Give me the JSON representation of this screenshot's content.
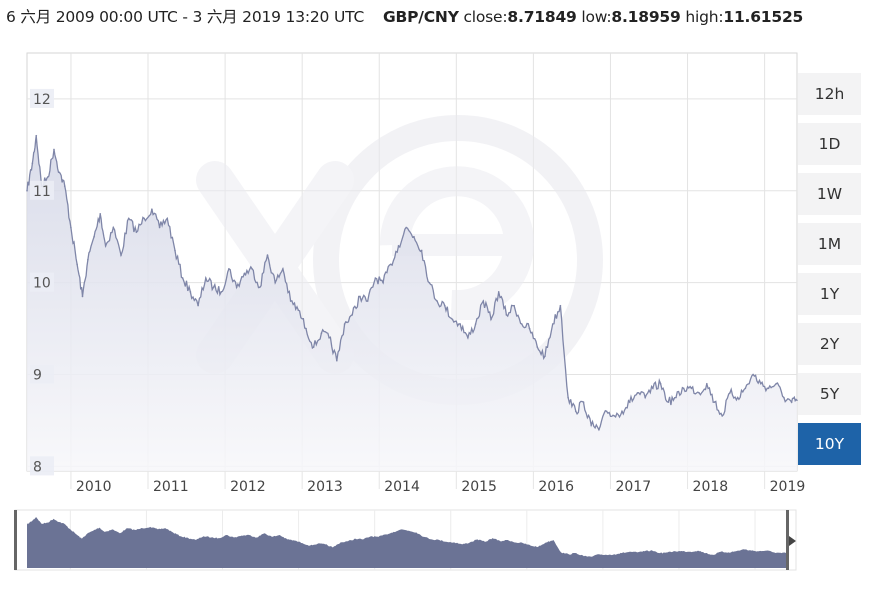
{
  "header": {
    "range": "6 六月 2009 00:00 UTC - 3 六月 2019 13:20 UTC",
    "pair": "GBP/CNY",
    "close_label": "close:",
    "close_value": "8.71849",
    "low_label": "low:",
    "low_value": "8.18959",
    "high_label": "high:",
    "high_value": "11.61525"
  },
  "timeframes": [
    {
      "label": "12h",
      "active": false
    },
    {
      "label": "1D",
      "active": false
    },
    {
      "label": "1W",
      "active": false
    },
    {
      "label": "1M",
      "active": false
    },
    {
      "label": "1Y",
      "active": false
    },
    {
      "label": "2Y",
      "active": false
    },
    {
      "label": "5Y",
      "active": false
    },
    {
      "label": "10Y",
      "active": true
    }
  ],
  "colors": {
    "line": "#7f86a8",
    "area_top": "#d9dbe8",
    "navigator_fill": "#6b7395",
    "active_button": "#1e63a8",
    "grid": "#e3e3e3"
  },
  "chart_data": {
    "type": "area",
    "title": "GBP/CNY",
    "xlabel": "",
    "ylabel": "",
    "xlim": [
      2009.43,
      2019.42
    ],
    "ylim": [
      7.95,
      12.5
    ],
    "yticks": [
      12,
      11,
      10,
      9,
      8
    ],
    "xticks": [
      2010,
      2011,
      2012,
      2013,
      2014,
      2015,
      2016,
      2017,
      2018,
      2019
    ],
    "grid": true,
    "navigator": true,
    "series": [
      {
        "name": "GBP/CNY",
        "x": [
          2009.43,
          2009.5,
          2009.55,
          2009.62,
          2009.7,
          2009.78,
          2009.85,
          2009.92,
          2010.0,
          2010.08,
          2010.15,
          2010.22,
          2010.3,
          2010.38,
          2010.45,
          2010.55,
          2010.65,
          2010.75,
          2010.85,
          2010.95,
          2011.05,
          2011.15,
          2011.25,
          2011.35,
          2011.45,
          2011.55,
          2011.65,
          2011.75,
          2011.85,
          2011.95,
          2012.05,
          2012.15,
          2012.25,
          2012.35,
          2012.45,
          2012.55,
          2012.65,
          2012.75,
          2012.85,
          2012.95,
          2013.05,
          2013.15,
          2013.25,
          2013.35,
          2013.45,
          2013.55,
          2013.65,
          2013.75,
          2013.85,
          2013.95,
          2014.05,
          2014.15,
          2014.25,
          2014.35,
          2014.45,
          2014.55,
          2014.65,
          2014.75,
          2014.85,
          2014.95,
          2015.05,
          2015.15,
          2015.25,
          2015.35,
          2015.45,
          2015.55,
          2015.65,
          2015.75,
          2015.85,
          2015.95,
          2016.05,
          2016.15,
          2016.25,
          2016.35,
          2016.45,
          2016.55,
          2016.65,
          2016.75,
          2016.85,
          2016.95,
          2017.05,
          2017.15,
          2017.25,
          2017.35,
          2017.45,
          2017.55,
          2017.65,
          2017.75,
          2017.85,
          2017.95,
          2018.05,
          2018.15,
          2018.25,
          2018.35,
          2018.45,
          2018.55,
          2018.65,
          2018.75,
          2018.85,
          2018.95,
          2019.05,
          2019.15,
          2019.25,
          2019.35,
          2019.42
        ],
        "y": [
          11.0,
          11.3,
          11.6,
          11.05,
          11.15,
          11.45,
          11.2,
          11.05,
          10.6,
          10.2,
          9.85,
          10.25,
          10.5,
          10.75,
          10.4,
          10.6,
          10.3,
          10.7,
          10.55,
          10.7,
          10.8,
          10.6,
          10.7,
          10.35,
          10.05,
          9.9,
          9.75,
          10.05,
          9.95,
          9.9,
          10.15,
          9.95,
          10.1,
          10.15,
          9.95,
          10.3,
          10.0,
          10.15,
          9.8,
          9.7,
          9.5,
          9.3,
          9.45,
          9.4,
          9.15,
          9.55,
          9.65,
          9.85,
          9.8,
          10.05,
          10.0,
          10.2,
          10.4,
          10.6,
          10.5,
          10.35,
          10.0,
          9.8,
          9.75,
          9.6,
          9.55,
          9.4,
          9.55,
          9.8,
          9.6,
          9.9,
          9.65,
          9.75,
          9.55,
          9.5,
          9.3,
          9.2,
          9.55,
          9.75,
          8.75,
          8.6,
          8.7,
          8.45,
          8.4,
          8.6,
          8.55,
          8.6,
          8.7,
          8.8,
          8.75,
          8.85,
          8.9,
          8.7,
          8.75,
          8.85,
          8.85,
          8.8,
          8.9,
          8.7,
          8.55,
          8.8,
          8.75,
          8.85,
          9.0,
          8.9,
          8.85,
          8.9,
          8.75,
          8.7,
          8.72
        ]
      }
    ]
  }
}
